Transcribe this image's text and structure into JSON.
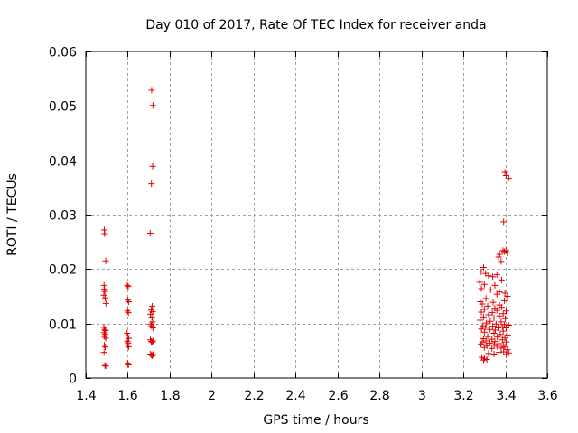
{
  "chart_data": {
    "type": "scatter",
    "title": "Day 010 of 2017, Rate Of TEC Index for receiver anda",
    "xlabel": "GPS time / hours",
    "ylabel": "ROTI / TECUs",
    "xlim": [
      1.4,
      3.6
    ],
    "ylim": [
      0,
      0.06
    ],
    "x_ticks": [
      1.4,
      1.6,
      1.8,
      2.0,
      2.2,
      2.4,
      2.6,
      2.8,
      3.0,
      3.2,
      3.4,
      3.6
    ],
    "x_tick_labels": [
      "1.4",
      "1.6",
      "1.8",
      "2",
      "2.2",
      "2.4",
      "2.6",
      "2.8",
      "3",
      "3.2",
      "3.4",
      "3.6"
    ],
    "y_ticks": [
      0,
      0.01,
      0.02,
      0.03,
      0.04,
      0.05,
      0.06
    ],
    "y_tick_labels": [
      "0",
      "0.01",
      "0.02",
      "0.03",
      "0.04",
      "0.05",
      "0.06"
    ],
    "grid": true,
    "marker": "plus",
    "color": "#e00000",
    "series": [
      {
        "points": [
          [
            1.488,
            0.0272
          ],
          [
            1.49,
            0.0265
          ],
          [
            1.495,
            0.0215
          ],
          [
            1.487,
            0.017
          ],
          [
            1.489,
            0.0163
          ],
          [
            1.491,
            0.0159
          ],
          [
            1.486,
            0.0152
          ],
          [
            1.493,
            0.0147
          ],
          [
            1.496,
            0.0137
          ],
          [
            1.486,
            0.0093
          ],
          [
            1.49,
            0.0089
          ],
          [
            1.494,
            0.0087
          ],
          [
            1.487,
            0.0083
          ],
          [
            1.492,
            0.008
          ],
          [
            1.489,
            0.0076
          ],
          [
            1.495,
            0.0073
          ],
          [
            1.488,
            0.006
          ],
          [
            1.493,
            0.0057
          ],
          [
            1.487,
            0.0047
          ],
          [
            1.491,
            0.0023
          ],
          [
            1.495,
            0.0022
          ],
          [
            1.598,
            0.017
          ],
          [
            1.602,
            0.0168
          ],
          [
            1.6,
            0.0143
          ],
          [
            1.604,
            0.014
          ],
          [
            1.599,
            0.0123
          ],
          [
            1.603,
            0.012
          ],
          [
            1.597,
            0.0082
          ],
          [
            1.601,
            0.0077
          ],
          [
            1.605,
            0.0073
          ],
          [
            1.598,
            0.0067
          ],
          [
            1.602,
            0.0064
          ],
          [
            1.6,
            0.006
          ],
          [
            1.604,
            0.0057
          ],
          [
            1.599,
            0.0027
          ],
          [
            1.603,
            0.0024
          ],
          [
            1.714,
            0.0529
          ],
          [
            1.72,
            0.0501
          ],
          [
            1.719,
            0.0389
          ],
          [
            1.713,
            0.0357
          ],
          [
            1.707,
            0.0266
          ],
          [
            1.717,
            0.0132
          ],
          [
            1.712,
            0.0125
          ],
          [
            1.719,
            0.0122
          ],
          [
            1.708,
            0.0117
          ],
          [
            1.715,
            0.0112
          ],
          [
            1.718,
            0.0103
          ],
          [
            1.71,
            0.0099
          ],
          [
            1.713,
            0.0096
          ],
          [
            1.72,
            0.0092
          ],
          [
            1.708,
            0.007
          ],
          [
            1.712,
            0.0067
          ],
          [
            1.716,
            0.0066
          ],
          [
            1.72,
            0.0068
          ],
          [
            1.709,
            0.0044
          ],
          [
            1.713,
            0.0042
          ],
          [
            1.717,
            0.0041
          ],
          [
            1.721,
            0.0043
          ],
          [
            3.398,
            0.0378
          ],
          [
            3.404,
            0.0372
          ],
          [
            3.416,
            0.0367
          ],
          [
            3.392,
            0.0287
          ],
          [
            3.389,
            0.0234
          ],
          [
            3.396,
            0.0232
          ],
          [
            3.403,
            0.0234
          ],
          [
            3.41,
            0.023
          ],
          [
            3.373,
            0.0227
          ],
          [
            3.368,
            0.0222
          ],
          [
            3.38,
            0.0214
          ],
          [
            3.296,
            0.0203
          ],
          [
            3.285,
            0.0195
          ],
          [
            3.306,
            0.0192
          ],
          [
            3.32,
            0.0188
          ],
          [
            3.34,
            0.0186
          ],
          [
            3.36,
            0.019
          ],
          [
            3.382,
            0.018
          ],
          [
            3.278,
            0.0176
          ],
          [
            3.3,
            0.0172
          ],
          [
            3.35,
            0.017
          ],
          [
            3.286,
            0.0164
          ],
          [
            3.33,
            0.0162
          ],
          [
            3.372,
            0.0158
          ],
          [
            3.398,
            0.0156
          ],
          [
            3.36,
            0.0154
          ],
          [
            3.41,
            0.015
          ],
          [
            3.308,
            0.0146
          ],
          [
            3.396,
            0.0142
          ],
          [
            3.281,
            0.014
          ],
          [
            3.342,
            0.0139
          ],
          [
            3.29,
            0.0136
          ],
          [
            3.372,
            0.0134
          ],
          [
            3.316,
            0.0132
          ],
          [
            3.382,
            0.013
          ],
          [
            3.35,
            0.0128
          ],
          [
            3.3,
            0.0126
          ],
          [
            3.36,
            0.0124
          ],
          [
            3.404,
            0.0123
          ],
          [
            3.286,
            0.0121
          ],
          [
            3.338,
            0.012
          ],
          [
            3.39,
            0.0118
          ],
          [
            3.32,
            0.0116
          ],
          [
            3.372,
            0.0114
          ],
          [
            3.296,
            0.0112
          ],
          [
            3.346,
            0.011
          ],
          [
            3.4,
            0.0109
          ],
          [
            3.28,
            0.0106
          ],
          [
            3.328,
            0.0104
          ],
          [
            3.38,
            0.0103
          ],
          [
            3.31,
            0.0101
          ],
          [
            3.356,
            0.0099
          ],
          [
            3.396,
            0.0098
          ],
          [
            3.416,
            0.0097
          ],
          [
            3.292,
            0.0096
          ],
          [
            3.34,
            0.0095
          ],
          [
            3.386,
            0.0094
          ],
          [
            3.306,
            0.0093
          ],
          [
            3.366,
            0.0092
          ],
          [
            3.404,
            0.0092
          ],
          [
            3.286,
            0.009
          ],
          [
            3.326,
            0.0089
          ],
          [
            3.352,
            0.0088
          ],
          [
            3.39,
            0.0086
          ],
          [
            3.3,
            0.0084
          ],
          [
            3.346,
            0.0082
          ],
          [
            3.376,
            0.008
          ],
          [
            3.412,
            0.0079
          ],
          [
            3.28,
            0.0077
          ],
          [
            3.316,
            0.0076
          ],
          [
            3.362,
            0.0075
          ],
          [
            3.398,
            0.0074
          ],
          [
            3.296,
            0.0072
          ],
          [
            3.336,
            0.0071
          ],
          [
            3.386,
            0.007
          ],
          [
            3.308,
            0.0068
          ],
          [
            3.35,
            0.0067
          ],
          [
            3.404,
            0.0066
          ],
          [
            3.29,
            0.0065
          ],
          [
            3.326,
            0.0064
          ],
          [
            3.37,
            0.0063
          ],
          [
            3.284,
            0.0062
          ],
          [
            3.346,
            0.0061
          ],
          [
            3.39,
            0.006
          ],
          [
            3.312,
            0.0059
          ],
          [
            3.36,
            0.0058
          ],
          [
            3.398,
            0.0057
          ],
          [
            3.3,
            0.0056
          ],
          [
            3.38,
            0.0055
          ],
          [
            3.336,
            0.0054
          ],
          [
            3.41,
            0.0052
          ],
          [
            3.392,
            0.0048
          ],
          [
            3.416,
            0.0046
          ],
          [
            3.37,
            0.0047
          ],
          [
            3.32,
            0.0045
          ],
          [
            3.346,
            0.0044
          ],
          [
            3.404,
            0.0043
          ],
          [
            3.288,
            0.0038
          ],
          [
            3.3,
            0.0036
          ],
          [
            3.312,
            0.0034
          ],
          [
            3.296,
            0.0033
          ]
        ]
      }
    ]
  }
}
